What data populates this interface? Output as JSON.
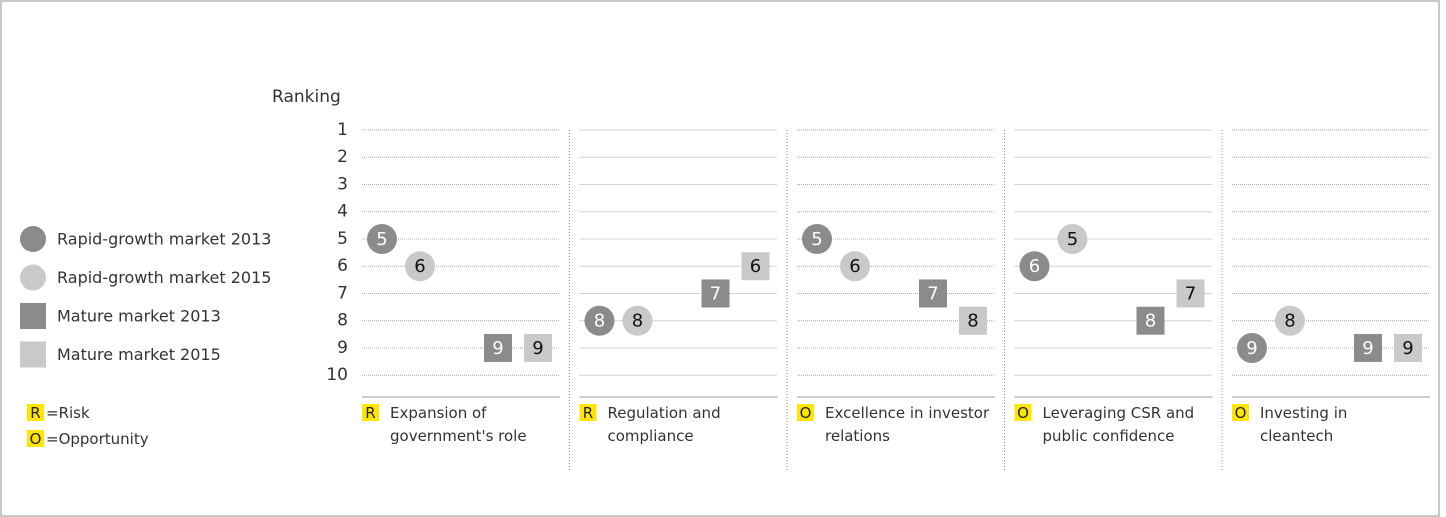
{
  "chart_data": {
    "type": "ranking-dot",
    "y_label": "Ranking",
    "categories": [
      "Expansion of government's role",
      "Regulation and compliance",
      "Excellence in investor relations",
      "Leveraging CSR and public confidence",
      "Investing in cleantech"
    ],
    "badges": [
      "R",
      "R",
      "O",
      "O",
      "O"
    ],
    "series": [
      {
        "name": "Rapid-growth market 2013",
        "shape": "circle",
        "color": "#8b8b8d",
        "values": [
          5,
          8,
          5,
          6,
          9
        ]
      },
      {
        "name": "Rapid-growth market 2015",
        "shape": "circle",
        "color": "#c9c9cb",
        "values": [
          6,
          8,
          6,
          5,
          8
        ]
      },
      {
        "name": "Mature market 2013",
        "shape": "square",
        "color": "#8b8b8d",
        "values": [
          9,
          7,
          7,
          8,
          9
        ]
      },
      {
        "name": "Mature market 2015",
        "shape": "square",
        "color": "#c9c9cb",
        "values": [
          9,
          6,
          8,
          7,
          9
        ]
      }
    ],
    "badge_key": [
      {
        "badge": "R",
        "text": "=Risk"
      },
      {
        "badge": "O",
        "text": "=Opportunity"
      }
    ],
    "ylim": [
      1,
      10.8
    ],
    "yticks": [
      1,
      2,
      3,
      4,
      5,
      6,
      7,
      8,
      9,
      10
    ],
    "inverted": true,
    "grid": true
  }
}
